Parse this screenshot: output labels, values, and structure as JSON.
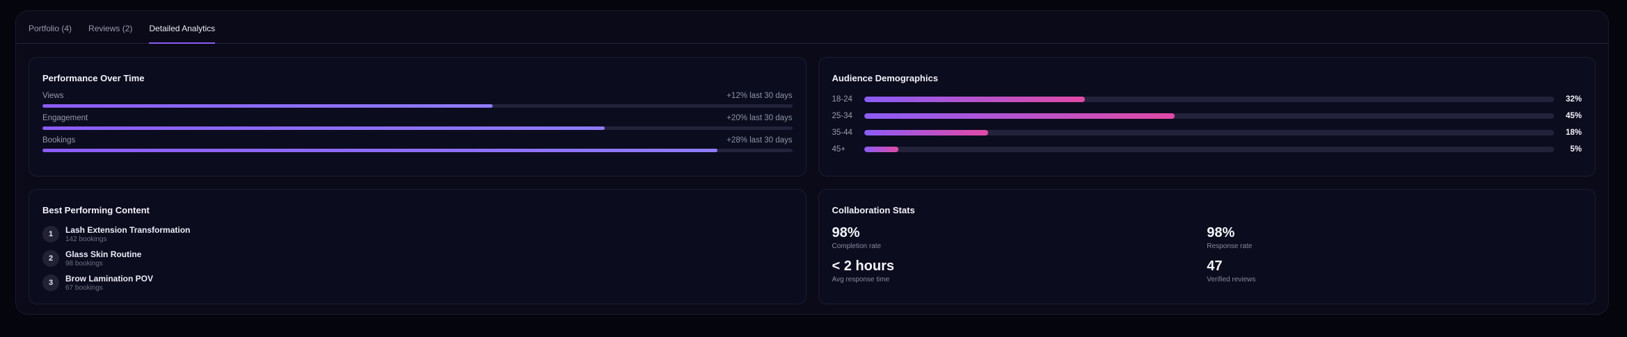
{
  "tabs": [
    {
      "label": "Portfolio (4)",
      "active": false
    },
    {
      "label": "Reviews (2)",
      "active": false
    },
    {
      "label": "Detailed Analytics",
      "active": true
    }
  ],
  "performance": {
    "title": "Performance Over Time",
    "rows": [
      {
        "label": "Views",
        "change": "+12% last 30 days",
        "progress_percent": 60
      },
      {
        "label": "Engagement",
        "change": "+20% last 30 days",
        "progress_percent": 75
      },
      {
        "label": "Bookings",
        "change": "+28% last 30 days",
        "progress_percent": 90
      }
    ]
  },
  "demographics": {
    "title": "Audience Demographics",
    "rows": [
      {
        "label": "18-24",
        "pct": "32%",
        "value": 32
      },
      {
        "label": "25-34",
        "pct": "45%",
        "value": 45
      },
      {
        "label": "35-44",
        "pct": "18%",
        "value": 18
      },
      {
        "label": "45+",
        "pct": "5%",
        "value": 5
      }
    ]
  },
  "best_content": {
    "title": "Best Performing Content",
    "items": [
      {
        "rank": "1",
        "title": "Lash Extension Transformation",
        "sub": "142 bookings"
      },
      {
        "rank": "2",
        "title": "Glass Skin Routine",
        "sub": "98 bookings"
      },
      {
        "rank": "3",
        "title": "Brow Lamination POV",
        "sub": "67 bookings"
      }
    ]
  },
  "collab": {
    "title": "Collaboration Stats",
    "stats": [
      {
        "value": "98%",
        "label": "Completion rate"
      },
      {
        "value": "98%",
        "label": "Response rate"
      },
      {
        "value": "< 2 hours",
        "label": "Avg response time"
      },
      {
        "value": "47",
        "label": "Verified reviews"
      }
    ]
  },
  "colors": {
    "accent": "#8b5cf6",
    "pink": "#e14aa6",
    "background": "#05050d"
  }
}
